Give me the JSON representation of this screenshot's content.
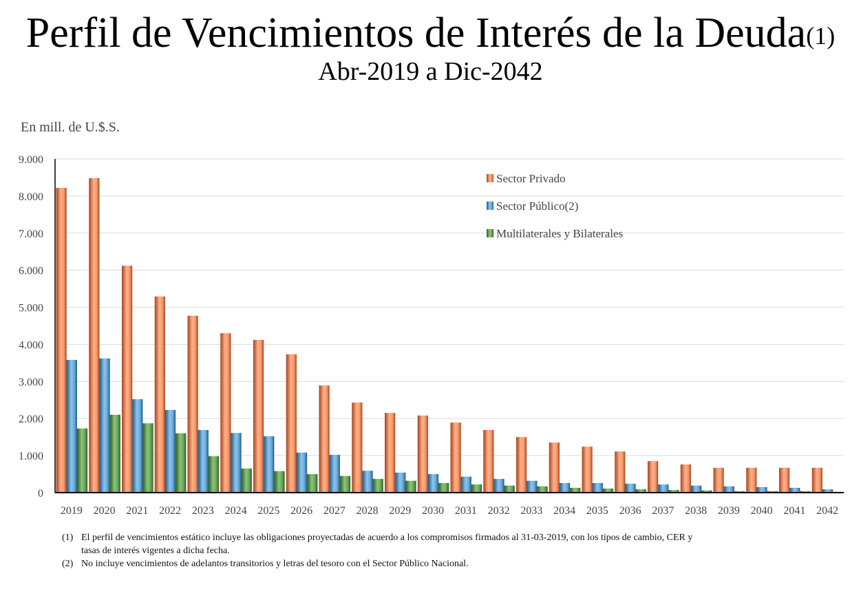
{
  "title": "Perfil de Vencimientos de Interés de la Deuda",
  "title_sup": "(1)",
  "subtitle": "Abr-2019 a Dic-2042",
  "unit_label": "En mill. de U.$.S.",
  "chart_data": {
    "type": "bar",
    "title": "Perfil de Vencimientos de Interés de la Deuda",
    "ylabel": "En mill. de U.$.S.",
    "ylim": [
      0,
      9000
    ],
    "yticks": [
      "0",
      "1.000",
      "2.000",
      "3.000",
      "4.000",
      "5.000",
      "6.000",
      "7.000",
      "8.000",
      "9.000"
    ],
    "grid": true,
    "legend_position": "top-right",
    "categories": [
      "2019",
      "2020",
      "2021",
      "2022",
      "2023",
      "2024",
      "2025",
      "2026",
      "2027",
      "2028",
      "2029",
      "2030",
      "2031",
      "2032",
      "2033",
      "2034",
      "2035",
      "2036",
      "2037",
      "2038",
      "2039",
      "2040",
      "2041",
      "2042"
    ],
    "series": [
      {
        "name": "Sector Privado",
        "color": "#f08a5a",
        "values": [
          8220,
          8480,
          6120,
          5290,
          4770,
          4300,
          4120,
          3730,
          2890,
          2430,
          2150,
          2080,
          1890,
          1690,
          1500,
          1350,
          1240,
          1110,
          850,
          760,
          670,
          670,
          670,
          670
        ]
      },
      {
        "name": "Sector Público(2)",
        "color": "#4a8fc4",
        "values": [
          3580,
          3620,
          2520,
          2230,
          1690,
          1610,
          1520,
          1080,
          1020,
          590,
          540,
          500,
          430,
          370,
          320,
          260,
          260,
          240,
          220,
          190,
          170,
          150,
          130,
          90
        ]
      },
      {
        "name": "Multilaterales y Bilaterales",
        "color": "#5a9a4a",
        "values": [
          1730,
          2100,
          1870,
          1600,
          980,
          650,
          580,
          500,
          450,
          370,
          320,
          260,
          220,
          190,
          170,
          130,
          110,
          90,
          70,
          60,
          40,
          40,
          40,
          20
        ]
      }
    ]
  },
  "footnotes": [
    {
      "num": "(1)",
      "text": "El perfil de vencimientos estático incluye las obligaciones proyectadas de acuerdo a los compromisos firmados al 31-03-2019, con los tipos de cambio, CER y",
      "cont": "tasas de interés vigentes a dicha fecha."
    },
    {
      "num": "(2)",
      "text": "No incluye vencimientos de adelantos transitorios y letras del tesoro con el Sector Público Nacional."
    }
  ]
}
